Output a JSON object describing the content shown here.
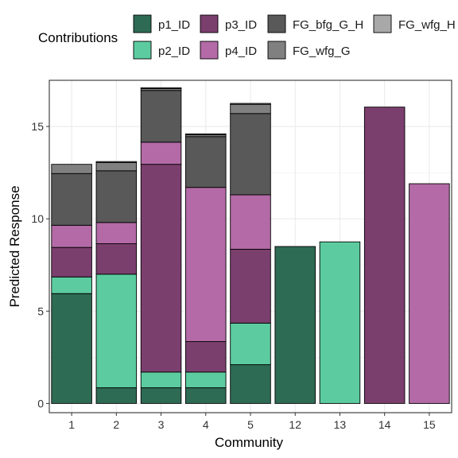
{
  "chart_data": {
    "type": "bar",
    "stacked": true,
    "title": "",
    "xlabel": "Community",
    "ylabel": "Predicted Response",
    "ylim": [
      -0.5,
      17.5
    ],
    "yticks": [
      0,
      5,
      10,
      15
    ],
    "grid": true,
    "legend": {
      "title": "Contributions",
      "position": "top"
    },
    "categories": [
      "1",
      "2",
      "3",
      "4",
      "5",
      "12",
      "13",
      "14",
      "15"
    ],
    "series": [
      {
        "name": "p1_ID",
        "color": "#2e6b55",
        "values": [
          5.95,
          0.85,
          0.85,
          0.85,
          2.1,
          8.5,
          0,
          0,
          0
        ]
      },
      {
        "name": "p2_ID",
        "color": "#5ccca0",
        "values": [
          0.9,
          6.15,
          0.85,
          0.85,
          2.25,
          0,
          8.75,
          0,
          0
        ]
      },
      {
        "name": "p3_ID",
        "color": "#7b3f6e",
        "values": [
          1.6,
          1.65,
          11.25,
          1.65,
          4.0,
          0,
          0,
          16.05,
          0
        ]
      },
      {
        "name": "p4_ID",
        "color": "#b36aa6",
        "values": [
          1.2,
          1.15,
          1.2,
          8.35,
          2.95,
          0,
          0,
          0,
          11.9
        ]
      },
      {
        "name": "FG_bfg_G_H",
        "color": "#595959",
        "values": [
          2.8,
          2.8,
          2.8,
          2.75,
          4.4,
          0,
          0,
          0,
          0
        ]
      },
      {
        "name": "FG_wfg_G",
        "color": "#808080",
        "values": [
          0.5,
          0.45,
          0.1,
          0.1,
          0.5,
          0,
          0,
          0,
          0
        ]
      },
      {
        "name": "FG_wfg_H",
        "color": "#a8a8a8",
        "values": [
          0.0,
          0.05,
          0.05,
          0.05,
          0.05,
          0,
          0,
          0,
          0
        ]
      }
    ]
  }
}
